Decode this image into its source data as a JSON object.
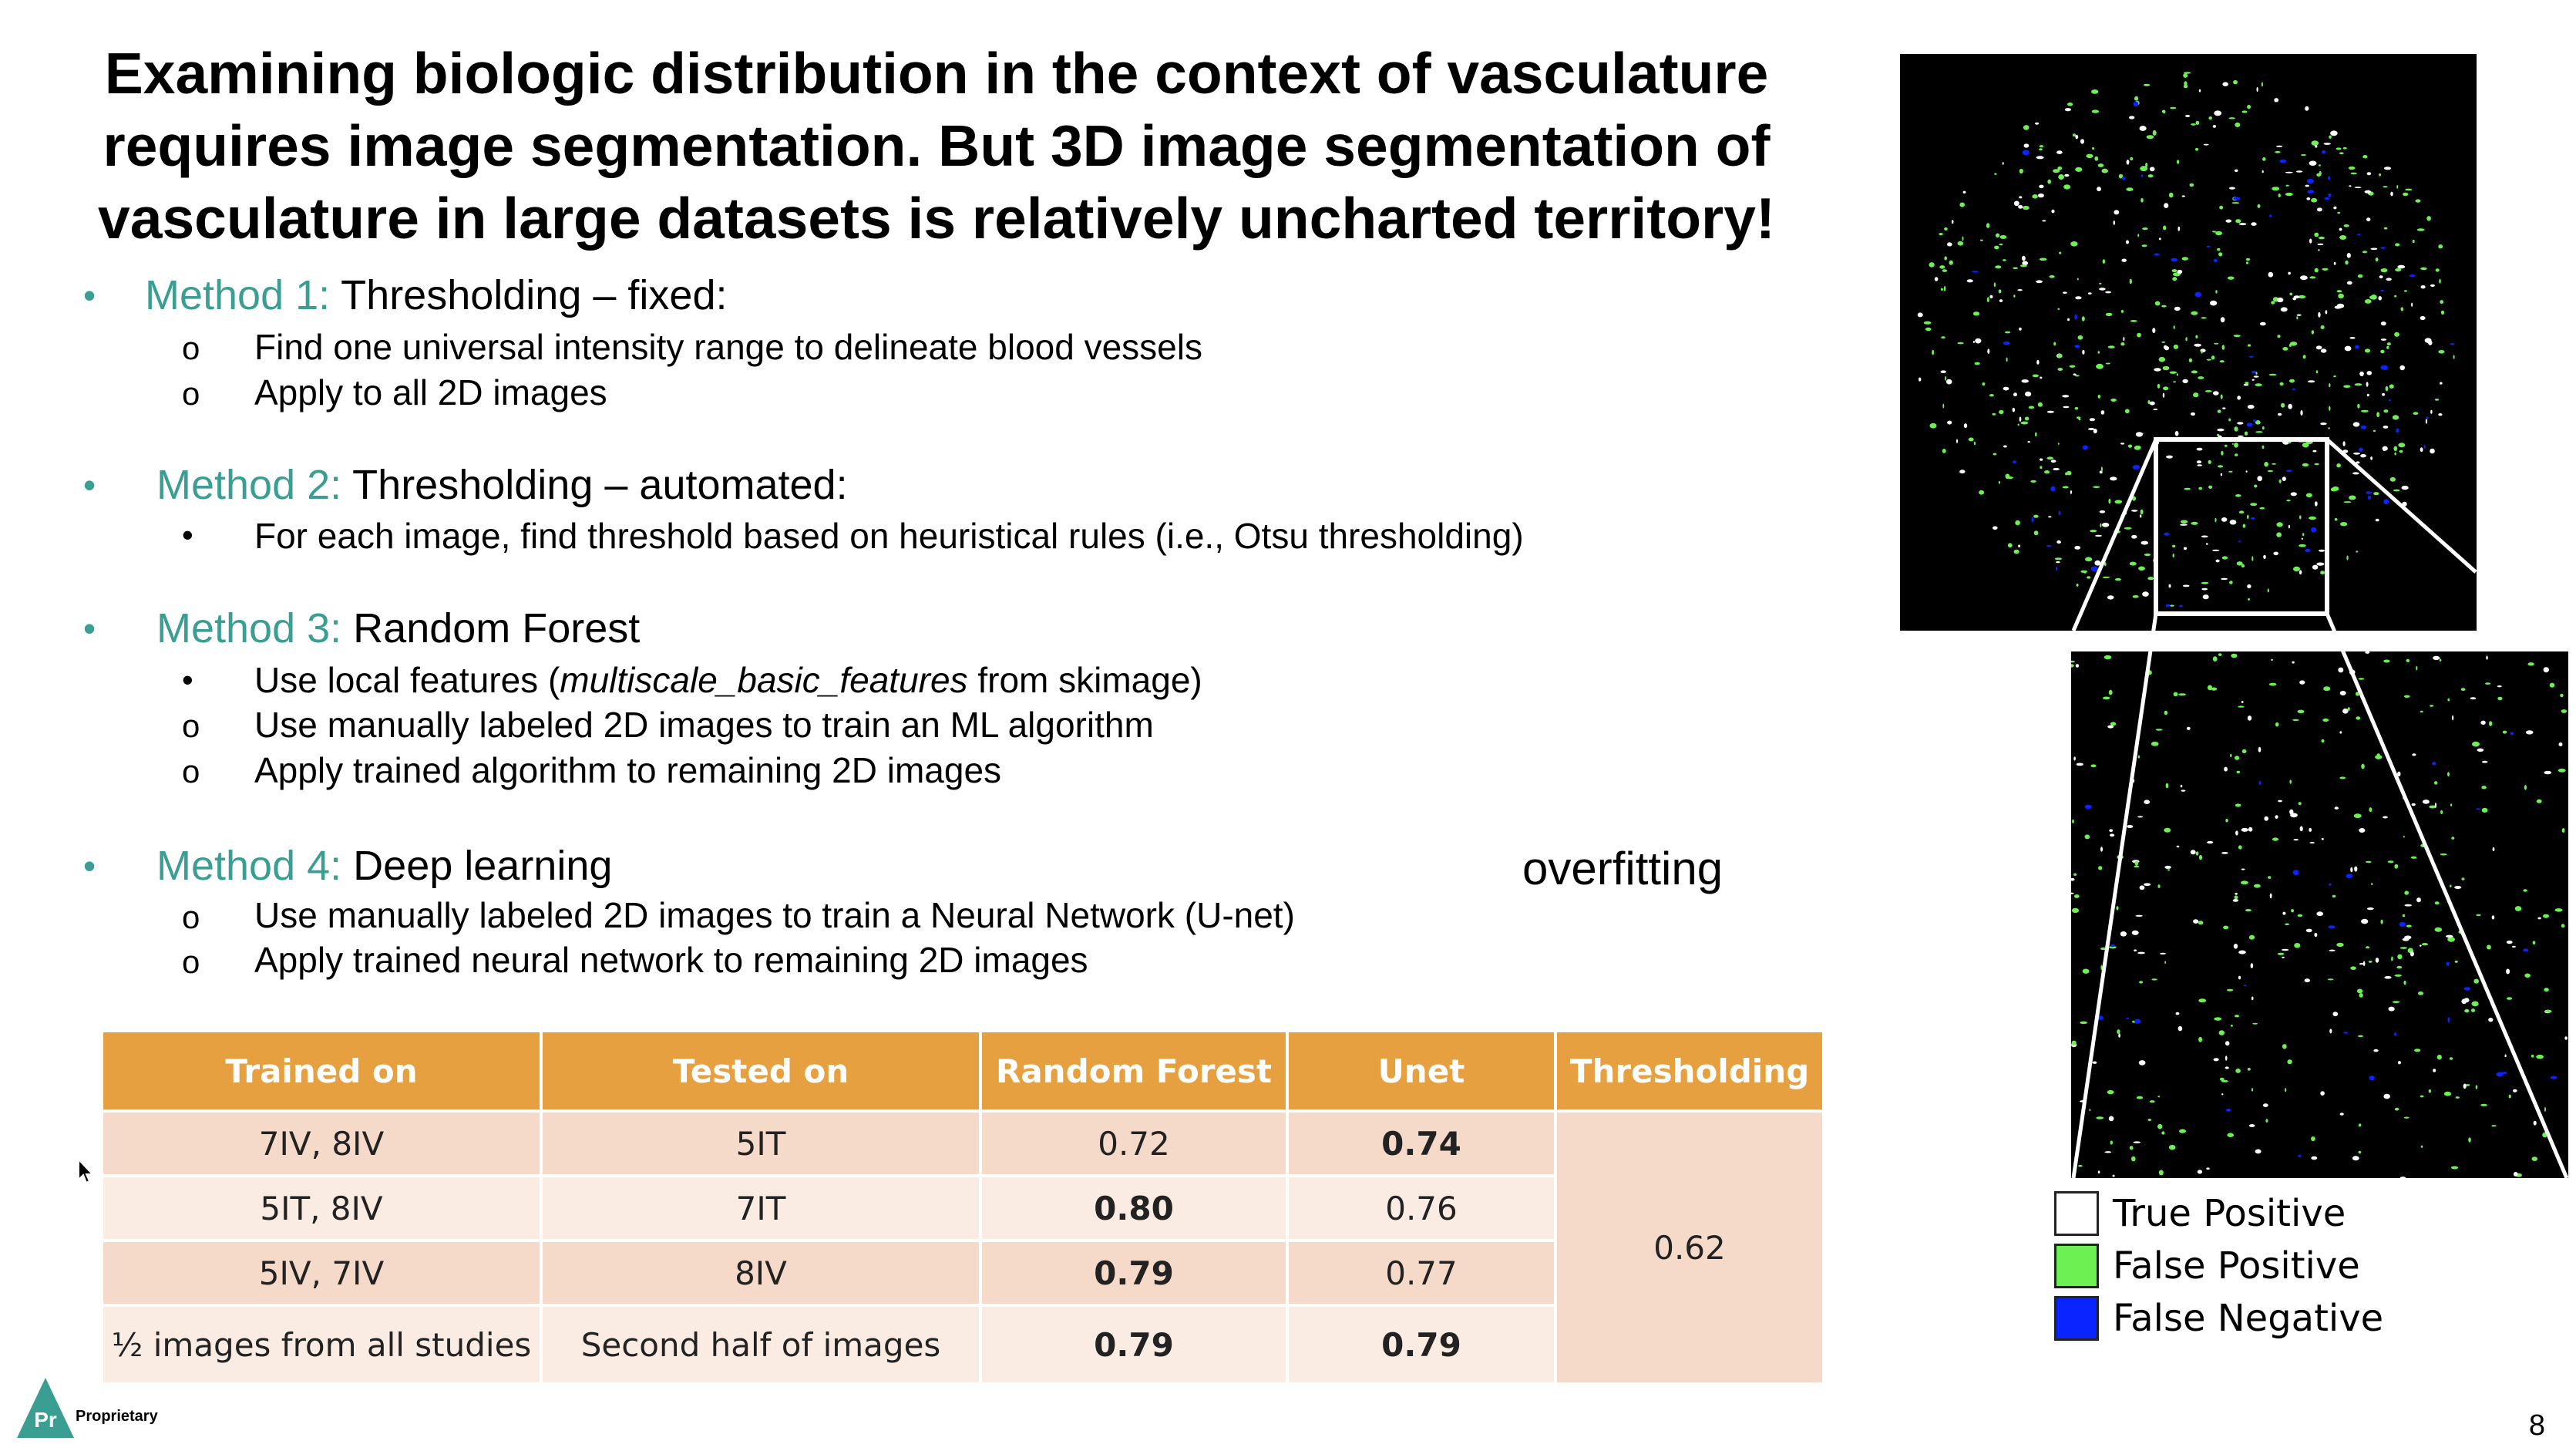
{
  "title": [
    "Examining biologic distribution in the context of vasculature",
    "requires image segmentation. But 3D image segmentation of",
    "vasculature in large datasets is relatively uncharted territory!"
  ],
  "methods": [
    {
      "name": "Method 1:",
      "desc": " Thresholding – fixed:",
      "items": [
        {
          "mark": "o",
          "text": "Find one universal intensity range to delineate blood vessels"
        },
        {
          "mark": "o",
          "text": "Apply to all 2D images"
        }
      ]
    },
    {
      "name": "Method 2:",
      "desc": " Thresholding – automated:",
      "items": [
        {
          "mark": "•",
          "text": "For each image, find threshold based on heuristical rules (i.e., Otsu thresholding)"
        }
      ]
    },
    {
      "name": "Method 3:",
      "desc": " Random Forest",
      "items": [
        {
          "mark": "•",
          "pre": "Use local features (",
          "em": "multiscale_basic_features",
          "post": " from skimage)"
        },
        {
          "mark": "o",
          "text": "Use manually labeled 2D images to train an ML algorithm"
        },
        {
          "mark": "o",
          "text": "Apply trained algorithm to remaining 2D images"
        }
      ]
    },
    {
      "name": "Method 4:",
      "desc": " Deep learning",
      "items": [
        {
          "mark": "o",
          "text": "Use manually labeled 2D images to train a Neural Network (U-net)"
        },
        {
          "mark": "o",
          "text": "Apply trained neural network to remaining 2D images"
        }
      ]
    }
  ],
  "overfitting": "overfitting",
  "table": {
    "headers": [
      "Trained on",
      "Tested on",
      "Random Forest",
      "Unet",
      "Thresholding"
    ],
    "rows": [
      [
        "7IV, 8IV",
        "5IT",
        "0.72",
        "0.74"
      ],
      [
        "5IT, 8IV",
        "7IT",
        "0.80",
        "0.76"
      ],
      [
        "5IV, 7IV",
        "8IV",
        "0.79",
        "0.77"
      ],
      [
        "½ images from all studies",
        "Second half of images",
        "0.79",
        "0.79"
      ]
    ],
    "thresholding_value": "0.62"
  },
  "legend": [
    {
      "label": "True Positive",
      "color": "#ffffff"
    },
    {
      "label": "False Positive",
      "color": "#6cf052"
    },
    {
      "label": "False Negative",
      "color": "#0a24ff"
    }
  ],
  "footer": {
    "logo_text": "Pr",
    "proprietary": "Proprietary",
    "page_number": "8"
  },
  "colors": {
    "accent": "#3a9e92",
    "table_header": "#e6a040",
    "row_dark": "#f5d9c9",
    "row_light": "#faece3"
  }
}
